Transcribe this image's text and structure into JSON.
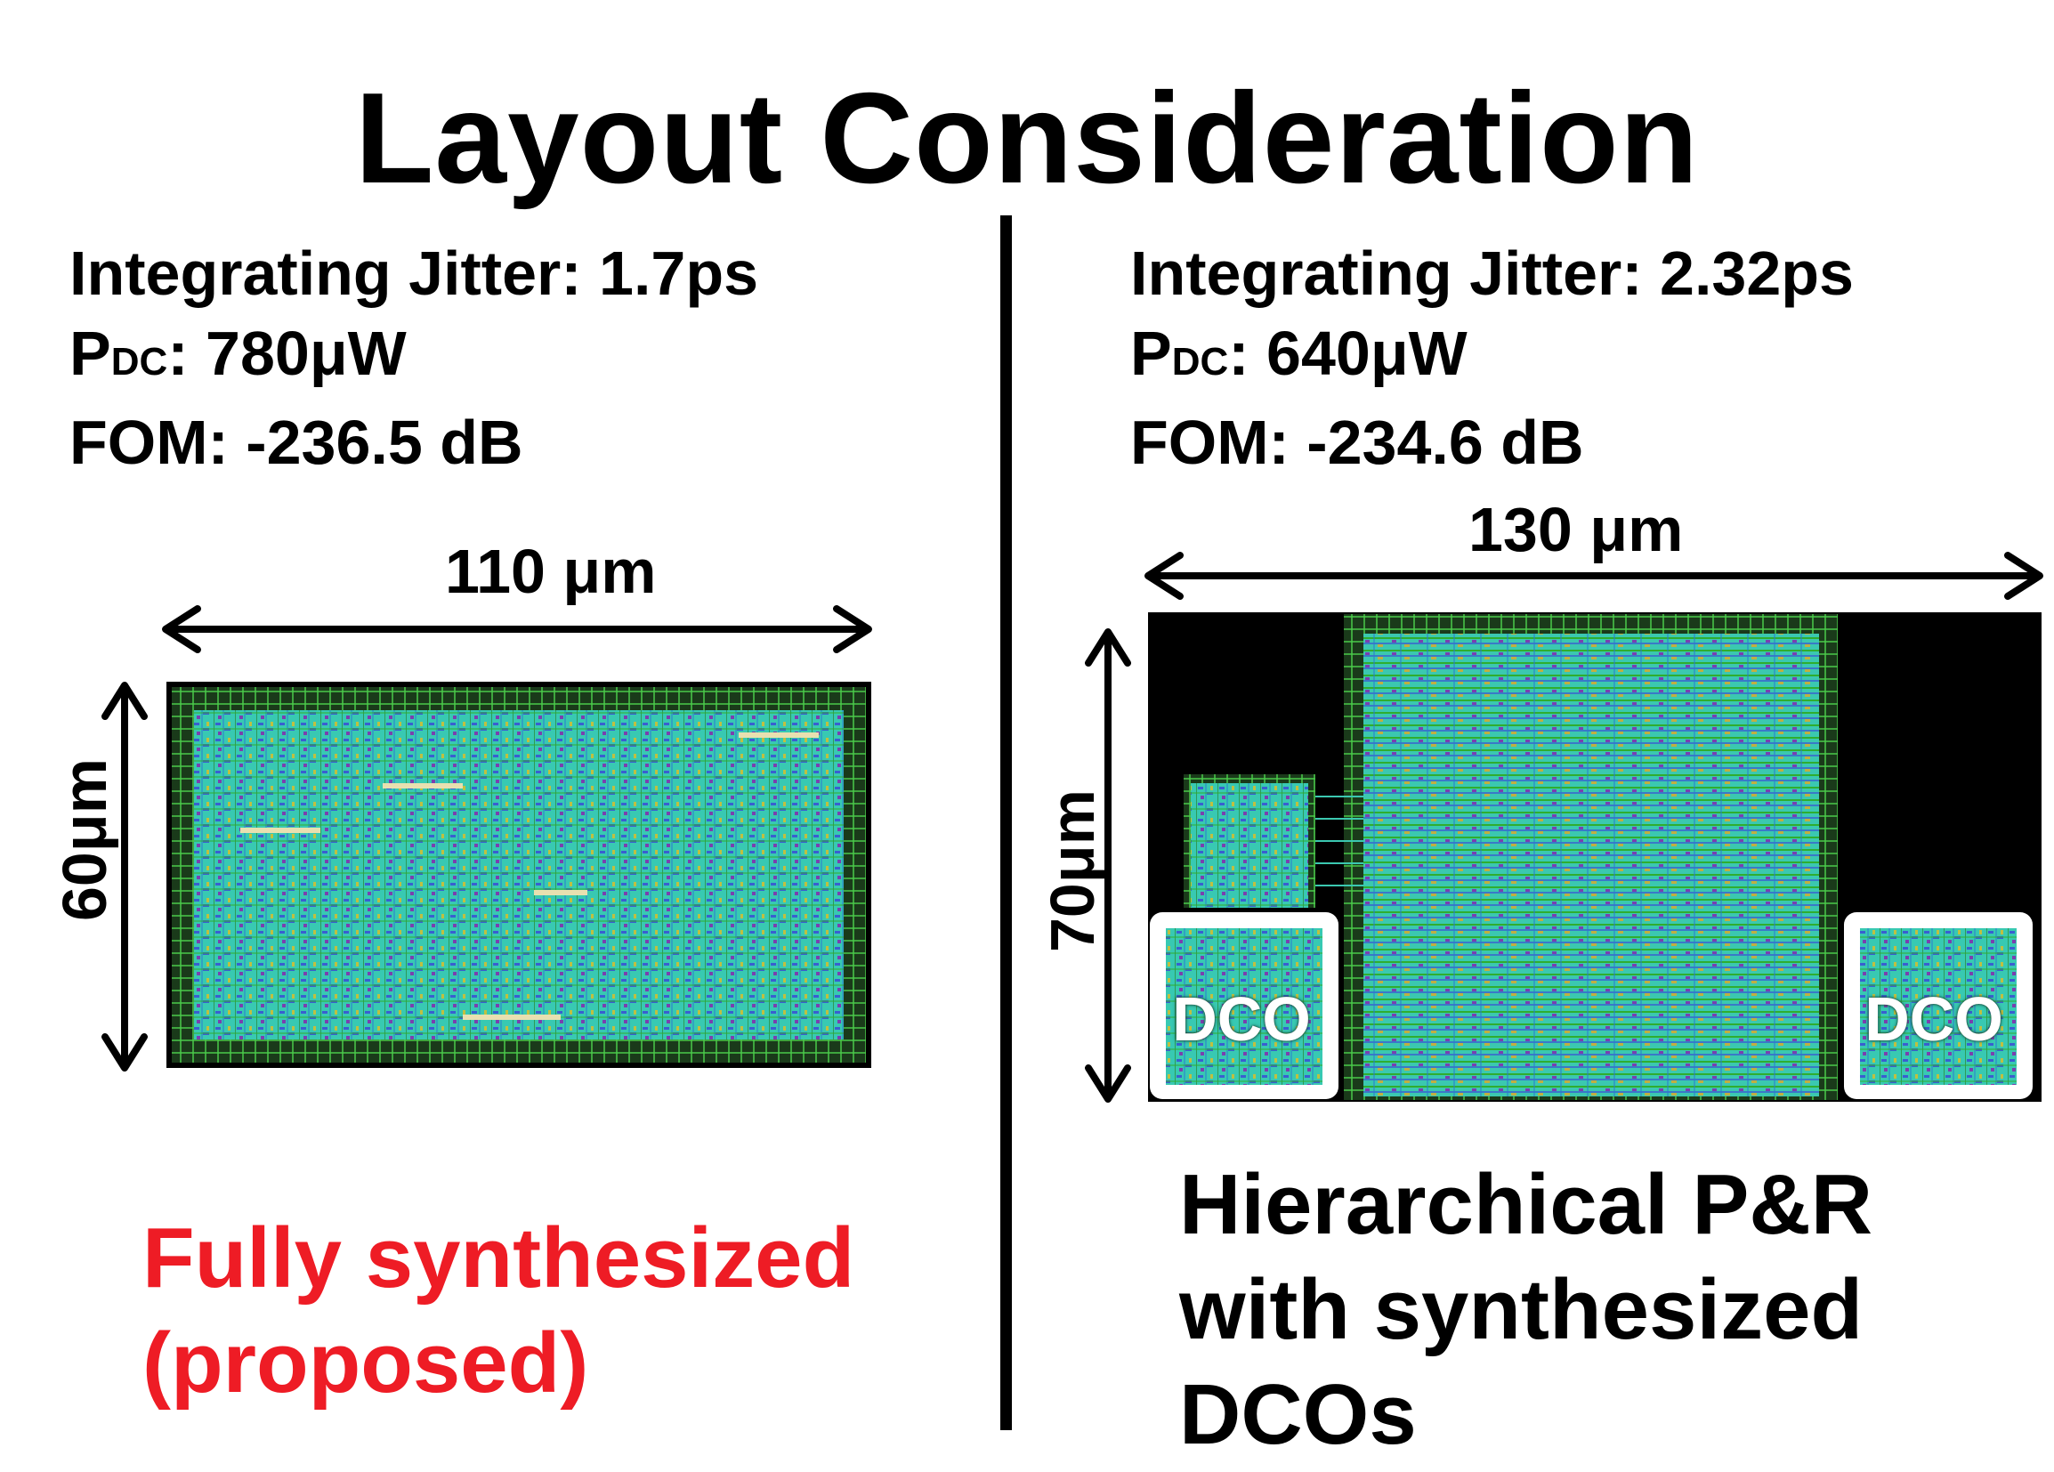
{
  "title": "Layout Consideration",
  "left": {
    "jitter": "Integrating Jitter: 1.7ps",
    "pdc_prefix": "P",
    "pdc_sub": "DC",
    "pdc_value": ": 780μW",
    "fom": "FOM: -236.5 dB",
    "width_label": "110 μm",
    "height_label": "60μm",
    "caption_line1": "Fully synthesized",
    "caption_line2": "(proposed)"
  },
  "right": {
    "jitter": "Integrating Jitter: 2.32ps",
    "pdc_prefix": "P",
    "pdc_sub": "DC",
    "pdc_value": ": 640μW",
    "fom": "FOM: -234.6 dB",
    "width_label": "130 μm",
    "height_label": "70μm",
    "dco_label_1": "DCO",
    "dco_label_2": "DCO",
    "caption_line1": "Hierarchical P&R",
    "caption_line2": "with synthesized",
    "caption_line3": "DCOs"
  },
  "colors": {
    "accent_red": "#ee1c25",
    "layout_cyan": "#3fd0b8",
    "layout_green": "#2fae2f",
    "layout_blue": "#3a5fd0",
    "background_black": "#000000"
  }
}
